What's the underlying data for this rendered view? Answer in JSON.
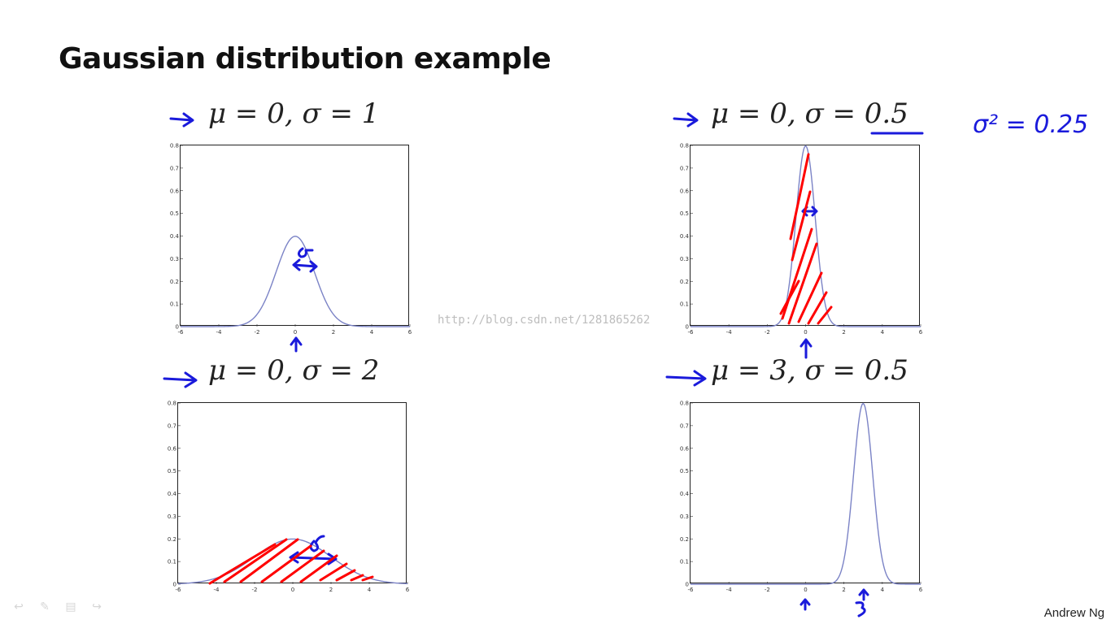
{
  "slide": {
    "title": "Gaussian distribution example",
    "author": "Andrew Ng",
    "watermark": "http://blog.csdn.net/1281865262"
  },
  "annotation": {
    "variance_note": "σ² = 0.25"
  },
  "colors": {
    "curve": "#7b83c6",
    "pen_blue": "#1a1adb",
    "pen_red": "#ff0000"
  },
  "nav_icons": [
    "undo-icon",
    "pen-icon",
    "menu-icon",
    "forward-icon"
  ],
  "chart_data": [
    {
      "type": "line",
      "label": {
        "mu": "μ = 0,",
        "sigma": "σ = 1"
      },
      "mu": 0,
      "sigma": 1,
      "xlim": [
        -6,
        6
      ],
      "ylim": [
        0,
        0.8
      ],
      "x_ticks": [
        "-6",
        "-4",
        "-2",
        "0",
        "2",
        "4",
        "6"
      ],
      "y_ticks": [
        "0",
        "0.1",
        "0.2",
        "0.3",
        "0.4",
        "0.5",
        "0.6",
        "0.7",
        "0.8"
      ],
      "peak": 0.4,
      "shaded": false
    },
    {
      "type": "line",
      "label": {
        "mu": "μ = 0,",
        "sigma": "σ = 0.5"
      },
      "mu": 0,
      "sigma": 0.5,
      "xlim": [
        -6,
        6
      ],
      "ylim": [
        0,
        0.8
      ],
      "x_ticks": [
        "-6",
        "-4",
        "-2",
        "0",
        "2",
        "4",
        "6"
      ],
      "y_ticks": [
        "0",
        "0.1",
        "0.2",
        "0.3",
        "0.4",
        "0.5",
        "0.6",
        "0.7",
        "0.8"
      ],
      "peak": 0.8,
      "shaded": true
    },
    {
      "type": "line",
      "label": {
        "mu": "μ = 0,",
        "sigma": "σ = 2"
      },
      "mu": 0,
      "sigma": 2,
      "xlim": [
        -6,
        6
      ],
      "ylim": [
        0,
        0.8
      ],
      "x_ticks": [
        "-6",
        "-4",
        "-2",
        "0",
        "2",
        "4",
        "6"
      ],
      "y_ticks": [
        "0",
        "0.1",
        "0.2",
        "0.3",
        "0.4",
        "0.5",
        "0.6",
        "0.7",
        "0.8"
      ],
      "peak": 0.2,
      "shaded": true
    },
    {
      "type": "line",
      "label": {
        "mu": "μ = 3,",
        "sigma": "σ = 0.5"
      },
      "mu": 3,
      "sigma": 0.5,
      "xlim": [
        -6,
        6
      ],
      "ylim": [
        0,
        0.8
      ],
      "x_ticks": [
        "-6",
        "-4",
        "-2",
        "0",
        "2",
        "4",
        "6"
      ],
      "y_ticks": [
        "0",
        "0.1",
        "0.2",
        "0.3",
        "0.4",
        "0.5",
        "0.6",
        "0.7",
        "0.8"
      ],
      "peak": 0.8,
      "shaded": false
    }
  ]
}
